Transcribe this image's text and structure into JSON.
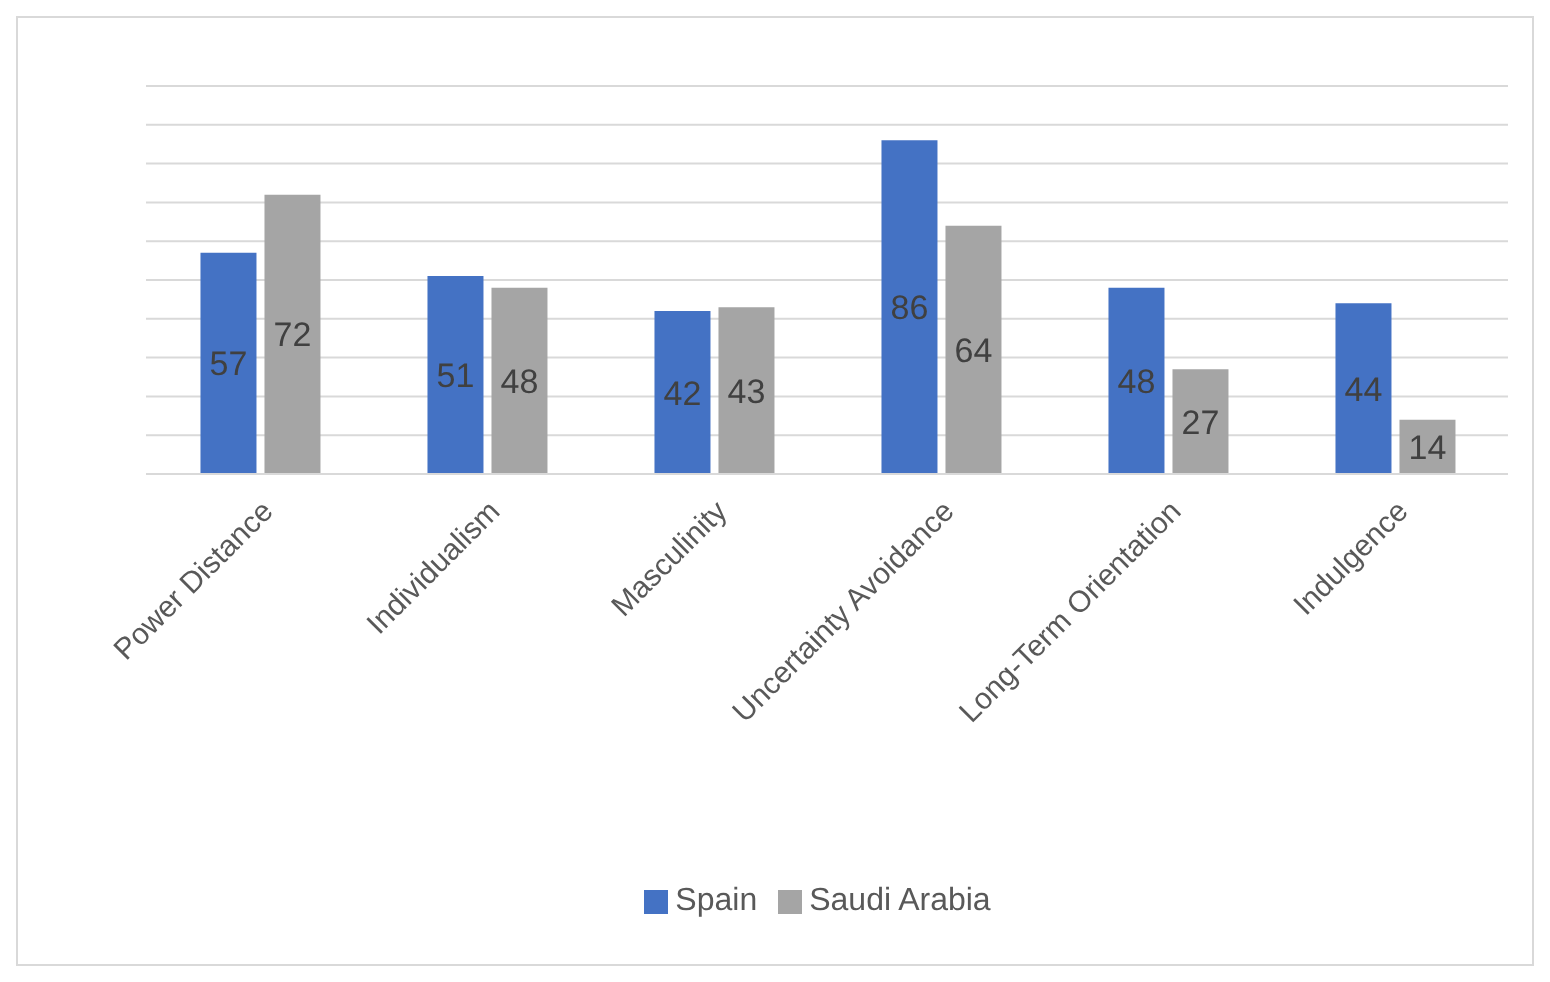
{
  "chart_data": {
    "type": "bar",
    "categories": [
      "Power Distance",
      "Individualism",
      "Masculinity",
      "Uncertainty Avoidance",
      "Long-Term Orientation",
      "Indulgence"
    ],
    "series": [
      {
        "name": "Spain",
        "color": "#4472c4",
        "values": [
          57,
          51,
          42,
          86,
          48,
          44
        ]
      },
      {
        "name": "Saudi Arabia",
        "color": "#a5a5a5",
        "values": [
          72,
          48,
          43,
          64,
          27,
          14
        ]
      }
    ],
    "ylim": [
      0,
      100
    ],
    "tick_labels": "x",
    "grid": "y",
    "legend": "bottom",
    "data_labels": true
  }
}
